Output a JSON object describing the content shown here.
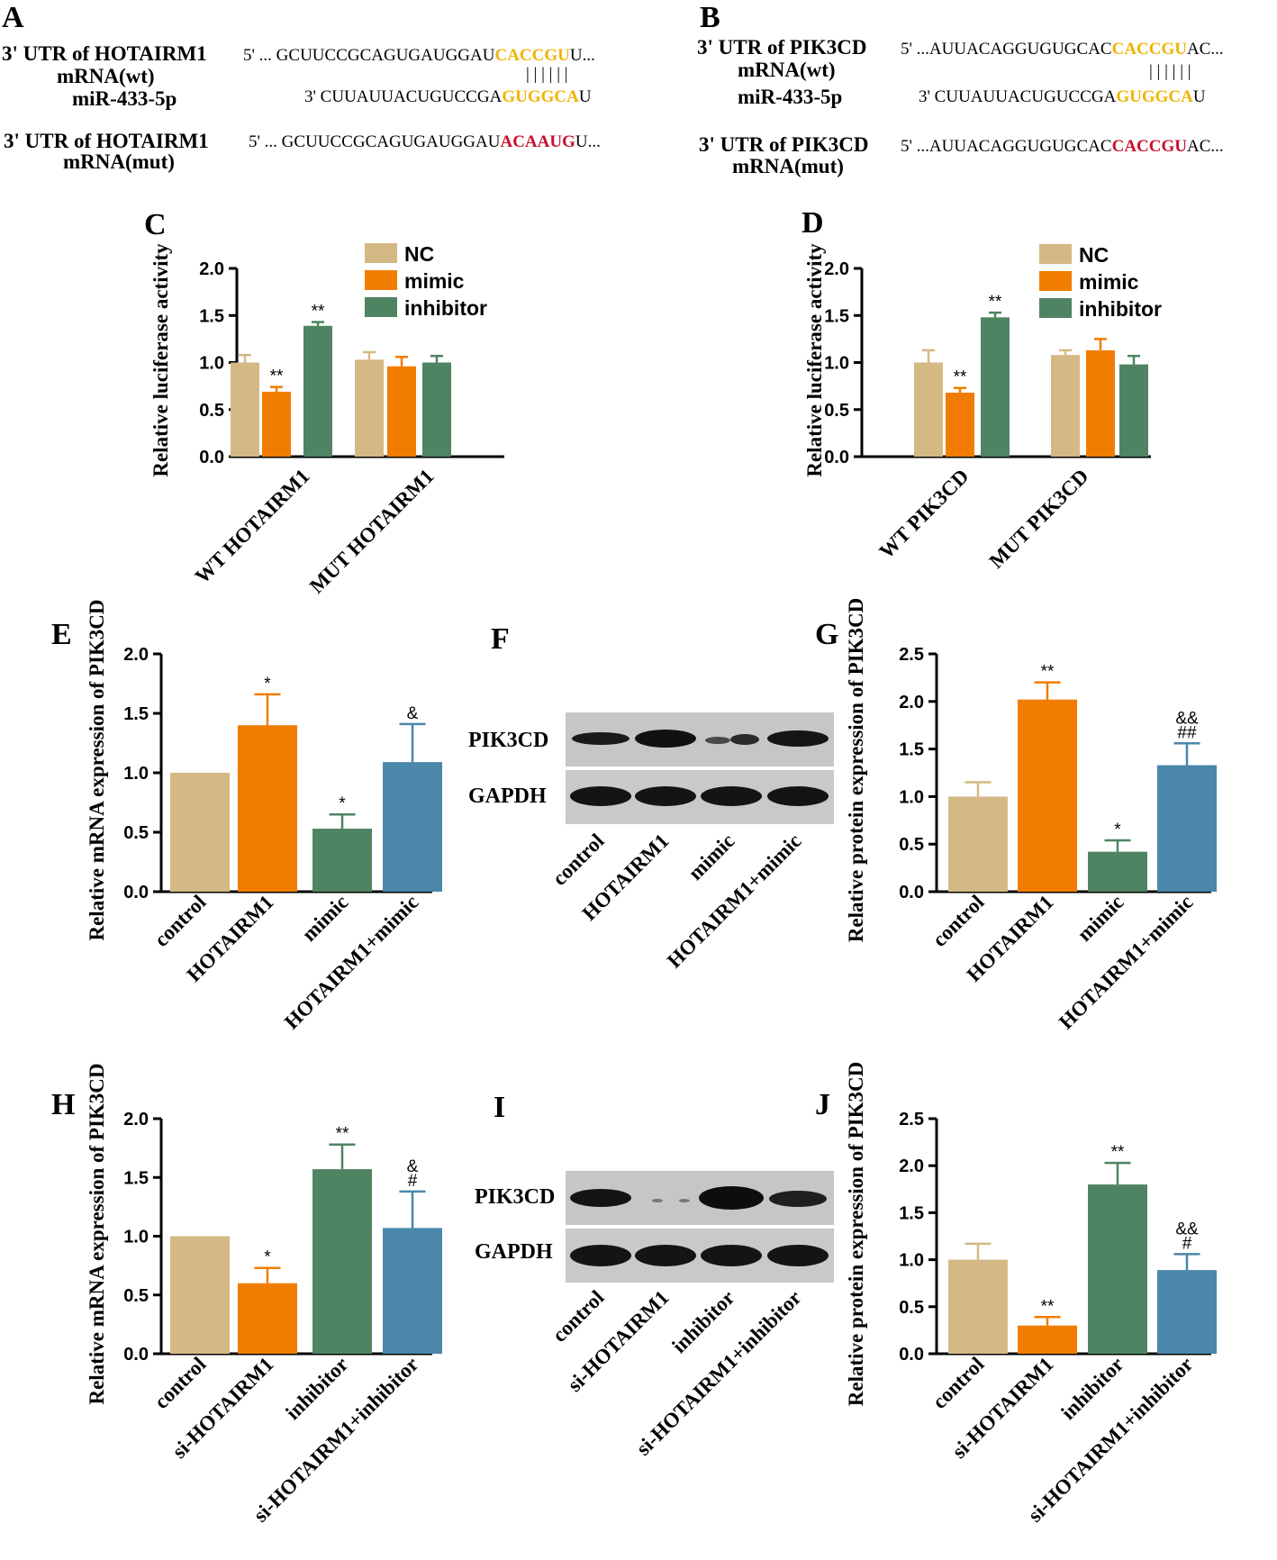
{
  "colors": {
    "nc": "#d5b984",
    "mimic": "#f07d00",
    "inhibitor": "#4f8462",
    "combo": "#4a87aa",
    "highlight": "#f0b400",
    "mutant": "#c8102e"
  },
  "panelA": {
    "label": "A",
    "wt_name": "3' UTR of HOTAIRM1",
    "wt_sub": "mRNA(wt)",
    "wt_seq_pre": "5' ... GCUUCCGCAGUGAUGGAU",
    "wt_seq_hl": "CACCGU",
    "wt_seq_post": "U...",
    "bars": "| | | | | |",
    "mir_name": "miR-433-5p",
    "mir_seq_pre": "3' CUUAUUACUGUCCGA",
    "mir_seq_hl": "GUGGCA",
    "mir_seq_post": "U",
    "mut_name": "3' UTR of HOTAIRM1",
    "mut_sub": "mRNA(mut)",
    "mut_seq_pre": "5' ... GCUUCCGCAGUGAUGGAU",
    "mut_seq_hl": "ACAAUG",
    "mut_seq_post": "U..."
  },
  "panelB": {
    "label": "B",
    "wt_name": "3' UTR of PIK3CD",
    "wt_sub": "mRNA(wt)",
    "wt_seq_pre": "5' ...AUUACAGGUGUGCAC",
    "wt_seq_hl": "CACCGU",
    "wt_seq_post": "AC...",
    "bars": "| | | | | |",
    "mir_name": "miR-433-5p",
    "mir_seq_pre": "3' CUUAUUACUGUCCGA",
    "mir_seq_hl": "GUGGCA",
    "mir_seq_post": "U",
    "mut_name": "3' UTR of PIK3CD",
    "mut_sub": "mRNA(mut)",
    "mut_seq_pre": "5' ...AUUACAGGUGUGCAC",
    "mut_seq_hl": "CACCGU",
    "mut_seq_post": "AC..."
  },
  "blotF": {
    "label": "F",
    "rows": [
      "PIK3CD",
      "GAPDH"
    ],
    "lanes": [
      "control",
      "HOTAIRM1",
      "mimic",
      "HOTAIRM1+mimic"
    ]
  },
  "blotI": {
    "label": "I",
    "rows": [
      "PIK3CD",
      "GAPDH"
    ],
    "lanes": [
      "control",
      "si-HOTAIRM1",
      "inhibitor",
      "si-HOTAIRM1+inhibitor"
    ]
  },
  "chart_data": [
    {
      "id": "C",
      "type": "bar",
      "title": "C",
      "ylabel": "Relative luciferase activity",
      "ylim": [
        0,
        2.0
      ],
      "yticks": [
        "0.0",
        "0.5",
        "1.0",
        "1.5",
        "2.0"
      ],
      "categories": [
        "WT HOTAIRM1",
        "MUT HOTAIRM1"
      ],
      "legend": [
        "NC",
        "mimic",
        "inhibitor"
      ],
      "series": [
        {
          "name": "NC",
          "values": [
            1.0,
            1.03
          ],
          "errors": [
            0.08,
            0.08
          ],
          "sig": [
            "",
            ""
          ]
        },
        {
          "name": "mimic",
          "values": [
            0.69,
            0.96
          ],
          "errors": [
            0.05,
            0.1
          ],
          "sig": [
            "**",
            ""
          ]
        },
        {
          "name": "inhibitor",
          "values": [
            1.39,
            1.0
          ],
          "errors": [
            0.04,
            0.07
          ],
          "sig": [
            "**",
            ""
          ]
        }
      ]
    },
    {
      "id": "D",
      "type": "bar",
      "title": "D",
      "ylabel": "Relative luciferase activity",
      "ylim": [
        0,
        2.0
      ],
      "yticks": [
        "0.0",
        "0.5",
        "1.0",
        "1.5",
        "2.0"
      ],
      "categories": [
        "WT PIK3CD",
        "MUT PIK3CD"
      ],
      "legend": [
        "NC",
        "mimic",
        "inhibitor"
      ],
      "series": [
        {
          "name": "NC",
          "values": [
            1.0,
            1.08
          ],
          "errors": [
            0.13,
            0.05
          ],
          "sig": [
            "",
            ""
          ]
        },
        {
          "name": "mimic",
          "values": [
            0.68,
            1.13
          ],
          "errors": [
            0.05,
            0.12
          ],
          "sig": [
            "**",
            ""
          ]
        },
        {
          "name": "inhibitor",
          "values": [
            1.48,
            0.98
          ],
          "errors": [
            0.05,
            0.09
          ],
          "sig": [
            "**",
            ""
          ]
        }
      ]
    },
    {
      "id": "E",
      "type": "bar",
      "title": "E",
      "ylabel": "Relative mRNA expression of PIK3CD",
      "ylim": [
        0,
        2.0
      ],
      "yticks": [
        "0.0",
        "0.5",
        "1.0",
        "1.5",
        "2.0"
      ],
      "categories": [
        "control",
        "HOTAIRM1",
        "mimic",
        "HOTAIRM1+mimic"
      ],
      "values": [
        1.0,
        1.4,
        0.53,
        1.09
      ],
      "errors": [
        0,
        0.26,
        0.12,
        0.32
      ],
      "sig": [
        [],
        [
          "*"
        ],
        [
          "*"
        ],
        [
          "&"
        ]
      ]
    },
    {
      "id": "G",
      "type": "bar",
      "title": "G",
      "ylabel": "Relative protein expression of PIK3CD",
      "ylim": [
        0,
        2.5
      ],
      "yticks": [
        "0.0",
        "0.5",
        "1.0",
        "1.5",
        "2.0",
        "2.5"
      ],
      "categories": [
        "control",
        "HOTAIRM1",
        "mimic",
        "HOTAIRM1+mimic"
      ],
      "values": [
        1.0,
        2.02,
        0.42,
        1.33
      ],
      "errors": [
        0.15,
        0.18,
        0.12,
        0.23
      ],
      "sig": [
        [],
        [
          "**"
        ],
        [
          "*"
        ],
        [
          "&&",
          "##"
        ]
      ]
    },
    {
      "id": "H",
      "type": "bar",
      "title": "H",
      "ylabel": "Relative mRNA expression of PIK3CD",
      "ylim": [
        0,
        2.0
      ],
      "yticks": [
        "0.0",
        "0.5",
        "1.0",
        "1.5",
        "2.0"
      ],
      "categories": [
        "control",
        "si-HOTAIRM1",
        "inhibitor",
        "si-HOTAIRM1+inhibitor"
      ],
      "values": [
        1.0,
        0.6,
        1.57,
        1.07
      ],
      "errors": [
        0,
        0.13,
        0.21,
        0.31
      ],
      "sig": [
        [],
        [
          "*"
        ],
        [
          "**"
        ],
        [
          "&",
          "#"
        ]
      ]
    },
    {
      "id": "J",
      "type": "bar",
      "title": "J",
      "ylabel": "Relative protein expression of PIK3CD",
      "ylim": [
        0,
        2.5
      ],
      "yticks": [
        "0.0",
        "0.5",
        "1.0",
        "1.5",
        "2.0",
        "2.5"
      ],
      "categories": [
        "control",
        "si-HOTAIRM1",
        "inhibitor",
        "si-HOTAIRM1+inhibitor"
      ],
      "values": [
        1.0,
        0.3,
        1.8,
        0.89
      ],
      "errors": [
        0.17,
        0.09,
        0.23,
        0.17
      ],
      "sig": [
        [],
        [
          "**"
        ],
        [
          "**"
        ],
        [
          "&&",
          "#"
        ]
      ]
    }
  ]
}
